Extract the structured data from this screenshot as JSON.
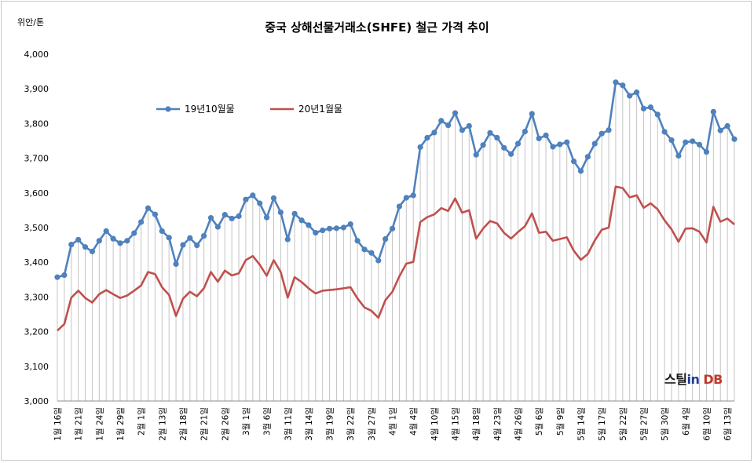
{
  "chart_data": {
    "type": "line",
    "title": "중국 상해선물거래소(SHFE)  철근 가격 추이",
    "ylabel": "위안/톤",
    "ylim": [
      3000,
      4000
    ],
    "yticks": [
      "3,000",
      "3,100",
      "3,200",
      "3,300",
      "3,400",
      "3,500",
      "3,600",
      "3,700",
      "3,800",
      "3,900",
      "4,000"
    ],
    "xtick_labels": [
      "1월 16일",
      "1월 21일",
      "1월 24일",
      "1월 29일",
      "2월 1일",
      "2월 13일",
      "2월 18일",
      "2월 21일",
      "2월 26일",
      "3월 1일",
      "3월 6일",
      "3월 11일",
      "3월 14일",
      "3월 19일",
      "3월 22일",
      "3월 27일",
      "4월 1일",
      "4월 4일",
      "4월 10일",
      "4월 15일",
      "4월 18일",
      "4월 23일",
      "4월 26일",
      "5월 6일",
      "5월 9일",
      "5월 14일",
      "5월 17일",
      "5월 22일",
      "5월 27일",
      "5월 30일",
      "6월 4일",
      "6월 10일",
      "6월 13일"
    ],
    "legend_position": "top-left",
    "grid": "vertical drop lines",
    "series": [
      {
        "name": "19년10월물",
        "color": "#4f81bd",
        "values": [
          3357,
          3363,
          3451,
          3465,
          3444,
          3431,
          3462,
          3490,
          3468,
          3455,
          3462,
          3484,
          3516,
          3556,
          3538,
          3490,
          3471,
          3395,
          3450,
          3470,
          3449,
          3476,
          3528,
          3502,
          3537,
          3526,
          3533,
          3581,
          3593,
          3570,
          3529,
          3585,
          3544,
          3466,
          3540,
          3521,
          3507,
          3485,
          3492,
          3497,
          3498,
          3500,
          3510,
          3462,
          3437,
          3427,
          3405,
          3467,
          3497,
          3561,
          3586,
          3593,
          3732,
          3759,
          3774,
          3808,
          3795,
          3830,
          3781,
          3793,
          3710,
          3738,
          3773,
          3759,
          3730,
          3712,
          3742,
          3777,
          3828,
          3757,
          3766,
          3733,
          3740,
          3746,
          3691,
          3663,
          3704,
          3742,
          3771,
          3781,
          3919,
          3910,
          3880,
          3890,
          3843,
          3847,
          3826,
          3776,
          3752,
          3707,
          3746,
          3749,
          3739,
          3718,
          3834,
          3780,
          3793,
          3755
        ]
      },
      {
        "name": "20년1월물",
        "color": "#c0504d",
        "values": [
          3203,
          3222,
          3298,
          3318,
          3297,
          3284,
          3308,
          3320,
          3308,
          3297,
          3304,
          3318,
          3333,
          3372,
          3366,
          3328,
          3306,
          3245,
          3295,
          3315,
          3302,
          3325,
          3372,
          3344,
          3376,
          3362,
          3368,
          3406,
          3418,
          3393,
          3361,
          3406,
          3372,
          3298,
          3357,
          3343,
          3325,
          3310,
          3318,
          3320,
          3322,
          3325,
          3328,
          3296,
          3270,
          3260,
          3240,
          3291,
          3315,
          3359,
          3396,
          3401,
          3516,
          3530,
          3538,
          3556,
          3548,
          3584,
          3543,
          3550,
          3468,
          3497,
          3519,
          3512,
          3485,
          3468,
          3487,
          3504,
          3541,
          3485,
          3488,
          3462,
          3467,
          3472,
          3433,
          3407,
          3424,
          3463,
          3494,
          3500,
          3618,
          3614,
          3587,
          3593,
          3557,
          3570,
          3553,
          3521,
          3495,
          3459,
          3497,
          3498,
          3488,
          3457,
          3560,
          3517,
          3526,
          3509
        ]
      }
    ]
  },
  "logo": {
    "part1": "스틸",
    "part2": "in",
    "part3": " DB"
  }
}
